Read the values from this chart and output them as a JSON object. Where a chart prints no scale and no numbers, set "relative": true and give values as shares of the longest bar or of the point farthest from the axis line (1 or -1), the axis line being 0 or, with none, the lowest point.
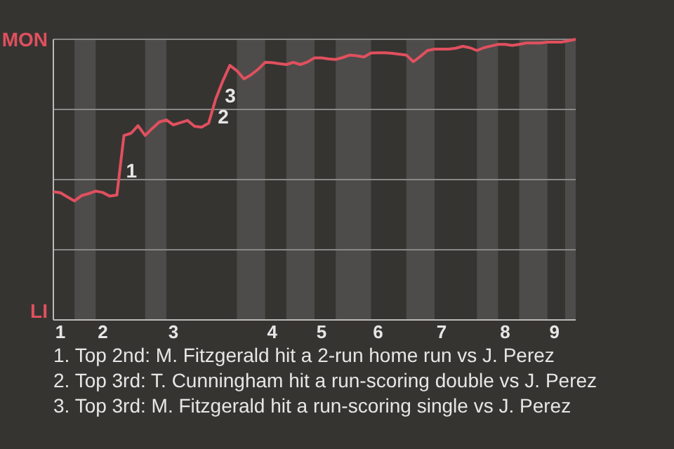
{
  "chart_data": {
    "type": "line",
    "relative": true,
    "categories": [
      null,
      "1",
      null,
      null,
      null,
      null,
      null,
      "2",
      null,
      null,
      null,
      null,
      null,
      null,
      null,
      null,
      null,
      "3",
      null,
      null,
      null,
      null,
      null,
      null,
      null,
      null,
      null,
      null,
      null,
      null,
      null,
      "4",
      null,
      null,
      null,
      null,
      null,
      null,
      "5",
      null,
      null,
      null,
      null,
      null,
      null,
      null,
      "6",
      null,
      null,
      null,
      null,
      null,
      null,
      null,
      null,
      "7",
      null,
      null,
      null,
      null,
      null,
      null,
      null,
      null,
      "8",
      null,
      null,
      null,
      null,
      null,
      null,
      "9",
      null,
      null,
      null
    ],
    "grid": true,
    "marker": "none",
    "line_style": "solid",
    "series": [
      {
        "color": "#e0505e",
        "values": [
          0.457,
          0.453,
          0.438,
          0.424,
          0.443,
          0.45,
          0.459,
          0.454,
          0.441,
          0.445,
          0.657,
          0.665,
          0.692,
          0.657,
          0.682,
          0.705,
          0.713,
          0.695,
          0.703,
          0.711,
          0.69,
          0.687,
          0.701,
          0.787,
          0.851,
          0.907,
          0.888,
          0.859,
          0.873,
          0.893,
          0.918,
          0.917,
          0.913,
          0.91,
          0.918,
          0.91,
          0.919,
          0.934,
          0.934,
          0.93,
          0.928,
          0.935,
          0.944,
          0.941,
          0.937,
          0.951,
          0.952,
          0.952,
          0.95,
          0.947,
          0.944,
          0.92,
          0.939,
          0.96,
          0.965,
          0.965,
          0.965,
          0.968,
          0.975,
          0.97,
          0.96,
          0.97,
          0.976,
          0.982,
          0.982,
          0.978,
          0.982,
          0.987,
          0.987,
          0.987,
          0.99,
          0.99,
          0.99,
          0.995,
          1
        ]
      }
    ],
    "annotations": [
      "MON",
      "LI",
      "1",
      "2",
      "3",
      "1. Top 2nd: M. Fitzgerald hit a 2-run home run vs J. Perez",
      "2. Top 3rd: T. Cunningham hit a run-scoring double vs J. Perez",
      "3. Top 3rd: M. Fitzgerald hit a run-scoring single vs J. Perez"
    ]
  }
}
